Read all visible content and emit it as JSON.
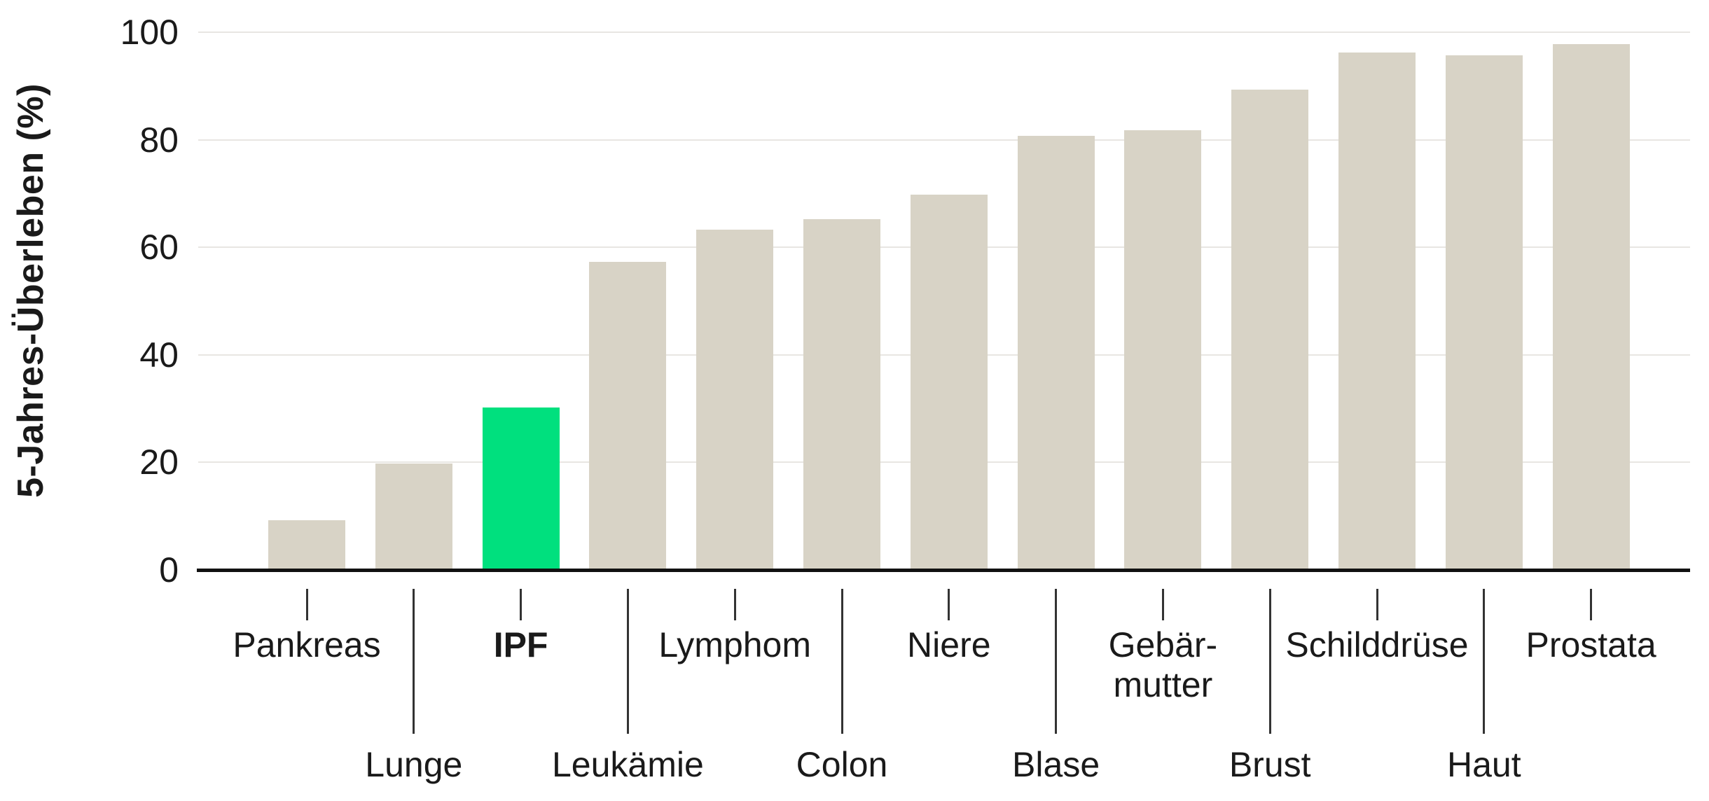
{
  "chart_data": {
    "type": "bar",
    "ylabel": "5-Jahres-Überleben (%)",
    "xlabel": "",
    "ylim": [
      0,
      100
    ],
    "yticks": [
      0,
      20,
      40,
      60,
      80,
      100
    ],
    "grid": true,
    "legend_position": "none",
    "categories": [
      "Pankreas",
      "Lunge",
      "IPF",
      "Leukämie",
      "Lymphom",
      "Colon",
      "Niere",
      "Blase",
      "Gebärmutter",
      "Brust",
      "Schilddrüse",
      "Haut",
      "Prostata"
    ],
    "values": [
      9,
      19.5,
      30,
      57,
      63,
      65,
      69.5,
      80.5,
      81.5,
      89,
      96,
      95.5,
      97.5
    ],
    "display_labels": [
      [
        "Pankreas"
      ],
      [
        "Lunge"
      ],
      [
        "IPF"
      ],
      [
        "Leukämie"
      ],
      [
        "Lymphom"
      ],
      [
        "Colon"
      ],
      [
        "Niere"
      ],
      [
        "Blase"
      ],
      [
        "Gebär-",
        "mutter"
      ],
      [
        "Brust"
      ],
      [
        "Schilddrüse"
      ],
      [
        "Haut"
      ],
      [
        "Prostata"
      ]
    ],
    "label_row": [
      "top",
      "bottom",
      "top",
      "bottom",
      "top",
      "bottom",
      "top",
      "bottom",
      "top",
      "bottom",
      "top",
      "bottom",
      "top"
    ],
    "highlighted_category": "IPF",
    "highlighted_index": 2,
    "colors": {
      "bar": "#d8d3c6",
      "highlight": "#00e07e",
      "gridline": "#e8e6e2",
      "axis": "#111111",
      "leader_line": "#333333",
      "text": "#1a1a1a",
      "background": "#ffffff"
    }
  }
}
